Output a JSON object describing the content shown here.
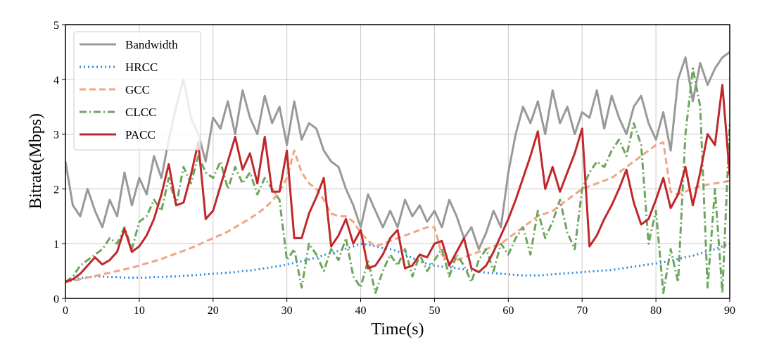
{
  "chart_data": {
    "type": "line",
    "x_label": "Time(s)",
    "y_label": "Bitrate(Mbps)",
    "x": [
      0,
      1,
      2,
      3,
      4,
      5,
      6,
      7,
      8,
      9,
      10,
      11,
      12,
      13,
      14,
      15,
      16,
      17,
      18,
      19,
      20,
      21,
      22,
      23,
      24,
      25,
      26,
      27,
      28,
      29,
      30,
      31,
      32,
      33,
      34,
      35,
      36,
      37,
      38,
      39,
      40,
      41,
      42,
      43,
      44,
      45,
      46,
      47,
      48,
      49,
      50,
      51,
      52,
      53,
      54,
      55,
      56,
      57,
      58,
      59,
      60,
      61,
      62,
      63,
      64,
      65,
      66,
      67,
      68,
      69,
      70,
      71,
      72,
      73,
      74,
      75,
      76,
      77,
      78,
      79,
      80,
      81,
      82,
      83,
      84,
      85,
      86,
      87,
      88,
      89,
      90
    ],
    "xlim": [
      0,
      90
    ],
    "xticks": [
      0,
      10,
      20,
      30,
      40,
      50,
      60,
      70,
      80,
      90
    ],
    "ylim": [
      0,
      5
    ],
    "yticks": [
      0,
      1,
      2,
      3,
      4,
      5
    ],
    "grid": true,
    "legend": "upper-left",
    "series": [
      {
        "name": "Bandwidth",
        "color": "#999999",
        "dash": "solid",
        "width": 3,
        "values": [
          2.5,
          1.7,
          1.5,
          2.0,
          1.6,
          1.3,
          1.8,
          1.5,
          2.3,
          1.7,
          2.2,
          1.9,
          2.6,
          2.2,
          2.9,
          3.5,
          4.0,
          3.3,
          3.0,
          2.5,
          3.3,
          3.1,
          3.6,
          3.0,
          3.8,
          3.3,
          3.0,
          3.7,
          3.2,
          3.5,
          2.8,
          3.6,
          2.9,
          3.2,
          3.1,
          2.7,
          2.5,
          2.4,
          2.0,
          1.7,
          1.3,
          1.9,
          1.6,
          1.3,
          1.6,
          1.3,
          1.8,
          1.5,
          1.7,
          1.4,
          1.6,
          1.3,
          1.8,
          1.5,
          1.1,
          1.3,
          0.9,
          1.2,
          1.6,
          1.3,
          2.3,
          3.0,
          3.5,
          3.2,
          3.6,
          3.0,
          3.8,
          3.2,
          3.5,
          3.0,
          3.4,
          3.3,
          3.8,
          3.1,
          3.7,
          3.3,
          3.0,
          3.5,
          3.7,
          3.2,
          2.9,
          3.4,
          2.7,
          4.0,
          4.4,
          3.6,
          4.3,
          3.9,
          4.2,
          4.4,
          4.5
        ]
      },
      {
        "name": "HRCC",
        "color": "#2f8ee5",
        "dash": "dotted",
        "width": 3,
        "values": [
          0.3,
          0.34,
          0.37,
          0.39,
          0.4,
          0.4,
          0.39,
          0.39,
          0.38,
          0.38,
          0.38,
          0.38,
          0.39,
          0.39,
          0.4,
          0.4,
          0.41,
          0.42,
          0.43,
          0.44,
          0.45,
          0.46,
          0.47,
          0.48,
          0.5,
          0.51,
          0.53,
          0.55,
          0.57,
          0.59,
          0.62,
          0.65,
          0.68,
          0.71,
          0.75,
          0.79,
          0.83,
          0.87,
          0.91,
          0.95,
          1.0,
          0.98,
          0.95,
          0.92,
          0.9,
          0.86,
          0.8,
          0.74,
          0.68,
          0.63,
          0.6,
          0.58,
          0.57,
          0.55,
          0.53,
          0.51,
          0.49,
          0.47,
          0.46,
          0.45,
          0.44,
          0.43,
          0.42,
          0.42,
          0.42,
          0.43,
          0.44,
          0.45,
          0.46,
          0.47,
          0.48,
          0.49,
          0.5,
          0.51,
          0.52,
          0.54,
          0.56,
          0.58,
          0.6,
          0.62,
          0.64,
          0.66,
          0.69,
          0.72,
          0.75,
          0.78,
          0.82,
          0.86,
          0.9,
          0.95,
          1.0
        ]
      },
      {
        "name": "GCC",
        "color": "#f0a584",
        "dash": "dashed",
        "width": 3,
        "values": [
          0.3,
          0.32,
          0.35,
          0.38,
          0.41,
          0.44,
          0.47,
          0.5,
          0.53,
          0.56,
          0.6,
          0.64,
          0.68,
          0.72,
          0.77,
          0.82,
          0.87,
          0.92,
          0.98,
          1.04,
          1.1,
          1.16,
          1.22,
          1.3,
          1.38,
          1.46,
          1.55,
          1.65,
          1.78,
          1.95,
          2.2,
          2.7,
          2.3,
          2.1,
          2.0,
          1.8,
          1.55,
          1.5,
          1.5,
          1.4,
          1.2,
          1.05,
          0.95,
          1.0,
          1.05,
          1.1,
          1.15,
          1.2,
          1.25,
          1.3,
          1.3,
          0.8,
          0.65,
          0.7,
          0.75,
          0.8,
          0.85,
          0.9,
          0.95,
          1.0,
          1.1,
          1.2,
          1.3,
          1.4,
          1.5,
          1.55,
          1.6,
          1.7,
          1.8,
          1.9,
          2.0,
          2.05,
          2.1,
          2.15,
          2.2,
          2.3,
          2.4,
          2.5,
          2.6,
          2.7,
          2.8,
          2.85,
          1.95,
          1.9,
          1.95,
          2.0,
          2.05,
          2.08,
          2.1,
          2.12,
          2.15
        ]
      },
      {
        "name": "CLCC",
        "color": "#6ea55e",
        "dash": "dashdot",
        "width": 3,
        "values": [
          0.3,
          0.4,
          0.6,
          0.7,
          0.8,
          0.9,
          1.1,
          1.0,
          1.3,
          0.9,
          1.4,
          1.5,
          1.8,
          1.6,
          2.2,
          1.7,
          2.4,
          2.1,
          2.6,
          2.3,
          2.2,
          2.5,
          2.0,
          2.4,
          2.1,
          2.3,
          1.9,
          2.2,
          2.0,
          1.8,
          0.7,
          0.9,
          0.2,
          1.0,
          0.8,
          0.5,
          0.9,
          0.7,
          1.1,
          0.4,
          0.2,
          0.7,
          0.1,
          0.5,
          0.8,
          0.6,
          0.9,
          0.4,
          0.8,
          0.5,
          0.7,
          0.9,
          0.4,
          0.8,
          0.6,
          0.3,
          0.7,
          0.9,
          0.5,
          1.0,
          0.8,
          1.1,
          1.3,
          0.8,
          1.6,
          1.1,
          1.4,
          1.8,
          1.2,
          0.9,
          2.0,
          2.3,
          2.5,
          2.4,
          2.7,
          2.9,
          2.6,
          3.2,
          2.8,
          1.0,
          1.6,
          0.1,
          0.9,
          0.3,
          3.0,
          4.2,
          3.5,
          0.2,
          2.0,
          0.1,
          3.2
        ]
      },
      {
        "name": "PACC",
        "color": "#c0282b",
        "dash": "solid",
        "width": 3,
        "values": [
          0.3,
          0.35,
          0.45,
          0.6,
          0.75,
          0.62,
          0.7,
          0.85,
          1.27,
          0.85,
          0.95,
          1.15,
          1.45,
          1.9,
          2.45,
          1.7,
          1.75,
          2.25,
          2.85,
          1.45,
          1.6,
          2.05,
          2.5,
          2.95,
          2.35,
          2.65,
          2.1,
          2.95,
          1.95,
          1.95,
          2.7,
          1.1,
          1.1,
          1.55,
          1.85,
          2.2,
          0.95,
          1.15,
          1.45,
          1.0,
          1.25,
          0.55,
          0.6,
          0.8,
          1.1,
          1.25,
          0.55,
          0.6,
          0.8,
          0.75,
          1.0,
          1.05,
          0.6,
          0.85,
          1.1,
          0.55,
          0.48,
          0.6,
          0.85,
          1.15,
          1.45,
          1.8,
          2.2,
          2.6,
          3.05,
          2.0,
          2.4,
          1.95,
          2.3,
          2.65,
          3.1,
          0.95,
          1.15,
          1.45,
          1.7,
          2.0,
          2.35,
          1.75,
          1.35,
          1.45,
          1.8,
          2.2,
          1.65,
          1.9,
          2.4,
          1.7,
          2.3,
          3.0,
          2.8,
          3.9,
          2.25
        ]
      }
    ]
  }
}
